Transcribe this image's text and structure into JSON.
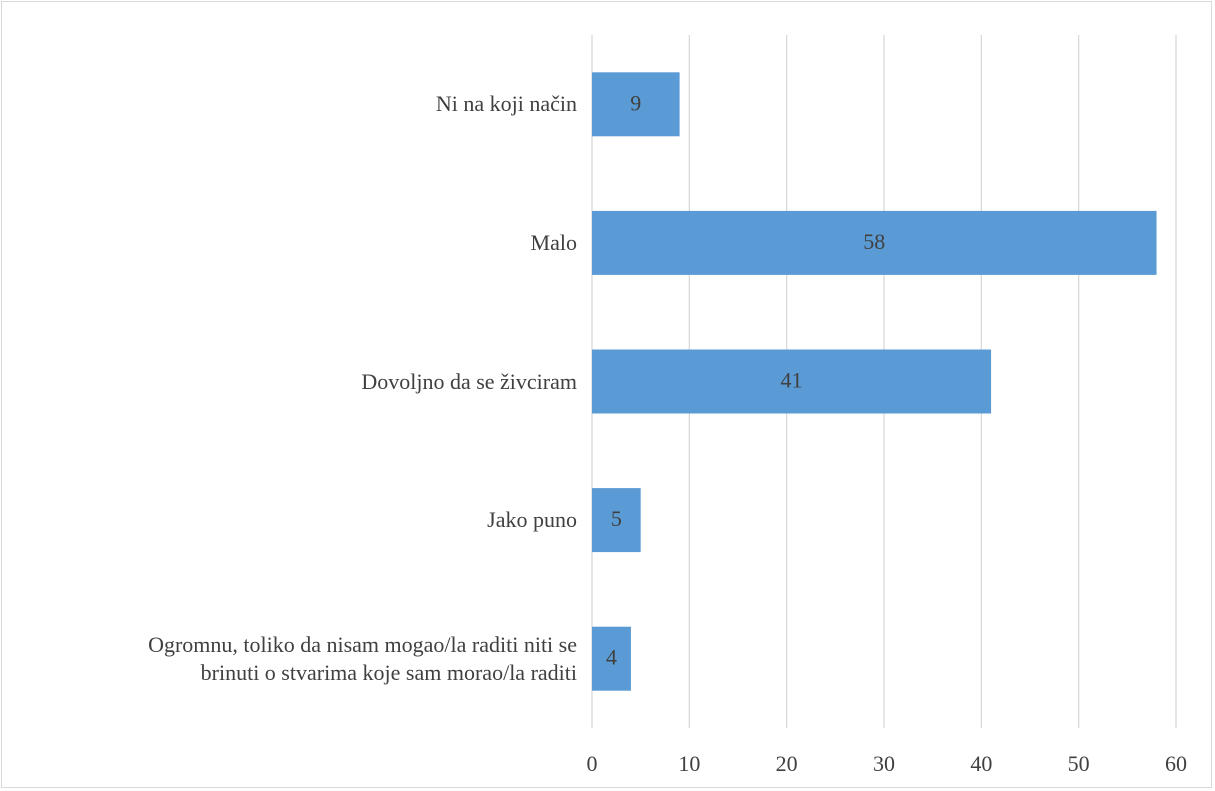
{
  "chart_data": {
    "type": "barh",
    "categories": [
      "Ni na koji način",
      "Malo",
      "Dovoljno da se živciram",
      "Jako puno",
      "Ogromnu, toliko da nisam mogao/la raditi niti se brinuti o stvarima koje sam morao/la raditi"
    ],
    "values": [
      9,
      58,
      41,
      5,
      4
    ],
    "color": "#5b9bd5",
    "xlim": [
      0,
      60
    ],
    "xticks": [
      0,
      10,
      20,
      30,
      40,
      50,
      60
    ],
    "grid": true
  }
}
